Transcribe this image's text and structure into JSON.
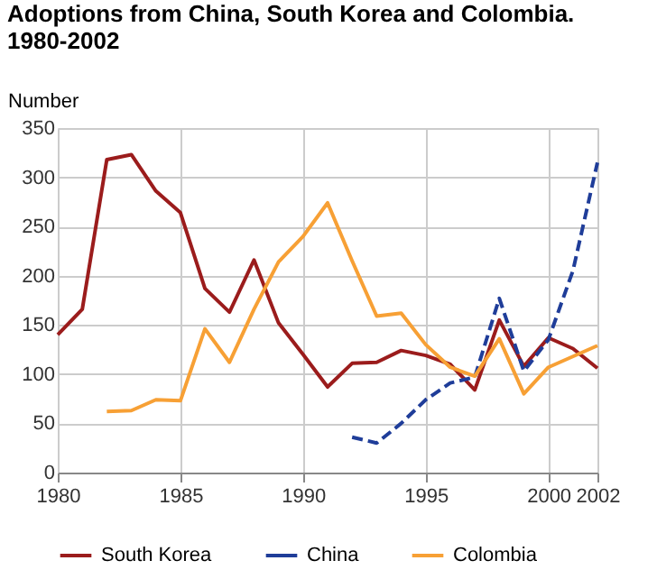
{
  "chart_data": {
    "type": "line",
    "title": [
      "Adoptions from China, South Korea and Colombia.",
      "1980-2002"
    ],
    "ylabel": "Number",
    "x": [
      1980,
      1981,
      1982,
      1983,
      1984,
      1985,
      1986,
      1987,
      1988,
      1989,
      1990,
      1991,
      1992,
      1993,
      1994,
      1995,
      1996,
      1997,
      1998,
      1999,
      2000,
      2001,
      2002
    ],
    "series": [
      {
        "name": "South Korea",
        "color": "#9b1c1c",
        "line_style": "solid",
        "values": [
          140,
          166,
          318,
          323,
          286,
          264,
          187,
          163,
          216,
          152,
          120,
          87,
          111,
          112,
          124,
          119,
          110,
          84,
          155,
          108,
          137,
          126,
          106
        ]
      },
      {
        "name": "China",
        "color": "#1f3d99",
        "line_style": "dashed",
        "values": [
          null,
          null,
          null,
          null,
          null,
          null,
          null,
          null,
          null,
          null,
          null,
          null,
          36,
          30,
          50,
          74,
          91,
          97,
          177,
          103,
          135,
          205,
          315
        ]
      },
      {
        "name": "Colombia",
        "color": "#f7a035",
        "line_style": "solid",
        "values": [
          null,
          null,
          62,
          63,
          74,
          73,
          146,
          112,
          166,
          214,
          240,
          274,
          215,
          159,
          162,
          130,
          107,
          98,
          136,
          80,
          107,
          118,
          129
        ]
      }
    ],
    "xlim": [
      1980,
      2002
    ],
    "xticks": [
      1980,
      1985,
      1990,
      1995,
      2000,
      2002
    ],
    "ylim": [
      0,
      350
    ],
    "yticks": [
      0,
      50,
      100,
      150,
      200,
      250,
      300,
      350
    ],
    "grid": true,
    "legend": "bottom",
    "marker": "none"
  }
}
